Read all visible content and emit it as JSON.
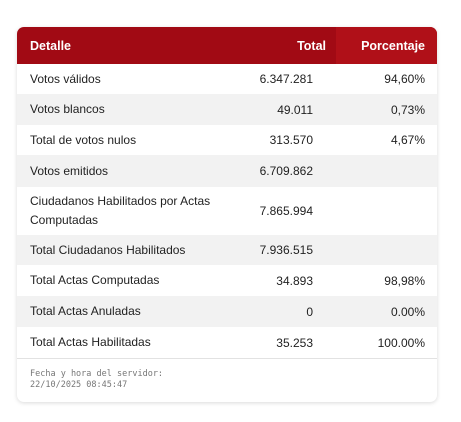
{
  "table": {
    "headers": {
      "detail": "Detalle",
      "total": "Total",
      "percent": "Porcentaje"
    },
    "rows": [
      {
        "label": "Votos válidos",
        "total": "6.347.281",
        "percent": "94,60%"
      },
      {
        "label": "Votos blancos",
        "total": "49.011",
        "percent": "0,73%"
      },
      {
        "label": "Total de votos nulos",
        "total": "313.570",
        "percent": "4,67%"
      },
      {
        "label": "Votos emitidos",
        "total": "6.709.862",
        "percent": ""
      },
      {
        "label": "Ciudadanos Habilitados por Actas Computadas",
        "total": "7.865.994",
        "percent": ""
      },
      {
        "label": "Total Ciudadanos Habilitados",
        "total": "7.936.515",
        "percent": ""
      },
      {
        "label": "Total Actas Computadas",
        "total": "34.893",
        "percent": "98,98%"
      },
      {
        "label": "Total Actas Anuladas",
        "total": "0",
        "percent": "0.00%"
      },
      {
        "label": "Total Actas Habilitadas",
        "total": "35.253",
        "percent": "100.00%"
      }
    ]
  },
  "footer": {
    "label": "Fecha y hora del servidor:",
    "datetime": "22/10/2025 08:45:47"
  },
  "colors": {
    "header_bg": "#a10a14",
    "header_text": "#ffffff",
    "alt_row_bg": "#f2f2f2"
  }
}
